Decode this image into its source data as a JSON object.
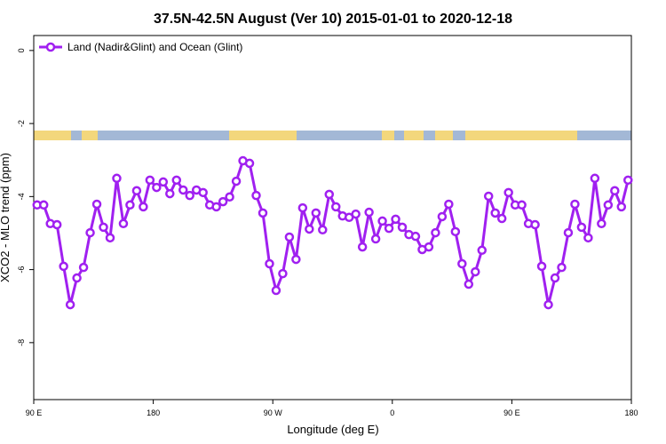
{
  "chart_data": {
    "type": "line",
    "title": "37.5N-42.5N August (Ver 10)   2015-01-01 to 2020-12-18",
    "x_label": "Longitude (deg E)",
    "y_label": "XCO2 - MLO trend (ppm)",
    "xlim": [
      90,
      540
    ],
    "ylim": [
      -9.56,
      0.41
    ],
    "xticks": [
      {
        "value": 90,
        "label": "90 E"
      },
      180,
      {
        "value": 270,
        "label": "90 W"
      },
      {
        "value": 360,
        "label": "0"
      },
      {
        "value": 450,
        "label": "90 E"
      },
      {
        "value": 540,
        "label": "180"
      }
    ],
    "yticks": [
      0,
      -2,
      -4,
      -6,
      -8
    ],
    "legend_position": "top-left",
    "x": [
      92.5,
      97.5,
      102.5,
      107.5,
      112.5,
      117.5,
      122.5,
      127.5,
      132.5,
      137.5,
      142.5,
      147.5,
      152.5,
      157.5,
      162.5,
      167.5,
      172.5,
      177.5,
      182.5,
      187.5,
      192.5,
      197.5,
      202.5,
      207.5,
      212.5,
      217.5,
      222.5,
      227.5,
      232.5,
      237.5,
      242.5,
      247.5,
      252.5,
      257.5,
      262.5,
      267.5,
      272.5,
      277.5,
      282.5,
      287.5,
      292.5,
      297.5,
      302.5,
      307.5,
      312.5,
      317.5,
      322.5,
      327.5,
      332.5,
      337.5,
      342.5,
      347.5,
      352.5,
      357.5,
      362.5,
      367.5,
      372.5,
      377.5,
      382.5,
      387.5,
      392.5,
      397.5,
      402.5,
      407.5,
      412.5,
      417.5,
      422.5,
      427.5,
      432.5,
      437.5,
      442.5,
      447.5,
      452.5,
      457.5,
      462.5,
      467.5,
      472.5,
      477.5,
      482.5,
      487.5,
      492.5,
      497.5,
      502.5,
      507.5,
      512.5,
      517.5,
      522.5,
      527.5,
      532.5,
      537.5
    ],
    "series": [
      {
        "name": "Land (Nadir&Glint) and Ocean (Glint)",
        "color": "#a020f0",
        "values": [
          -4.23,
          -4.23,
          -4.74,
          -4.77,
          -5.91,
          -6.96,
          -6.23,
          -5.94,
          -4.99,
          -4.21,
          -4.84,
          -5.13,
          -3.5,
          -4.74,
          -4.23,
          -3.84,
          -4.28,
          -3.55,
          -3.75,
          -3.6,
          -3.92,
          -3.55,
          -3.82,
          -3.97,
          -3.82,
          -3.89,
          -4.23,
          -4.28,
          -4.14,
          -4.01,
          -3.58,
          -3.02,
          -3.09,
          -3.97,
          -4.45,
          -5.84,
          -6.57,
          -6.11,
          -5.11,
          -5.72,
          -4.31,
          -4.89,
          -4.45,
          -4.91,
          -3.94,
          -4.28,
          -4.53,
          -4.57,
          -4.48,
          -5.38,
          -4.43,
          -5.16,
          -4.67,
          -4.87,
          -4.62,
          -4.84,
          -5.04,
          -5.09,
          -5.45,
          -5.38,
          -4.99,
          -4.55,
          -4.21,
          -4.96,
          -5.84,
          -6.4,
          -6.06,
          -5.47,
          -3.99,
          -4.45,
          -4.6,
          -3.89,
          -4.23,
          -4.23,
          -4.74,
          -4.77,
          -5.91,
          -6.96,
          -6.23,
          -5.94,
          -4.99,
          -4.21,
          -4.84,
          -5.13,
          -3.5,
          -4.74,
          -4.23,
          -3.84,
          -4.28,
          -3.55
        ]
      }
    ]
  }
}
